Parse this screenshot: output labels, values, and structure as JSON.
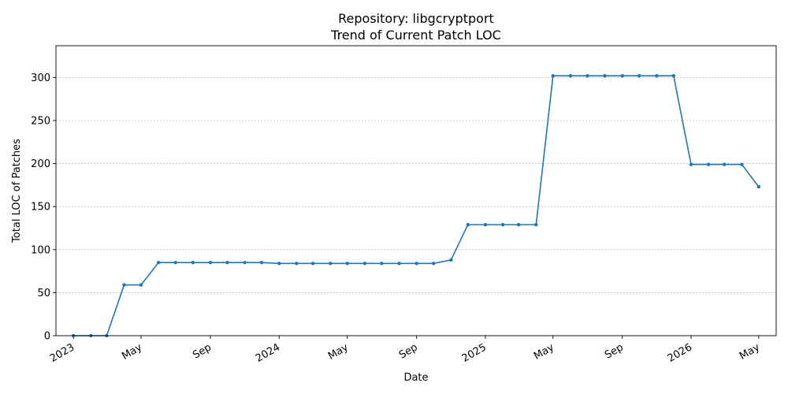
{
  "chart_data": {
    "type": "line",
    "title": "Repository: libgcryptport",
    "subtitle": "Trend of Current Patch LOC",
    "xlabel": "Date",
    "ylabel": "Total LOC of Patches",
    "ylim": [
      0,
      337
    ],
    "xlim": [
      "2022-12-01",
      "2026-06-01"
    ],
    "grid": "y-dashed",
    "color": "#1f77b4",
    "x_ticks": [
      {
        "date": "2023-01-01",
        "label": "2023"
      },
      {
        "date": "2023-05-01",
        "label": "May"
      },
      {
        "date": "2023-09-01",
        "label": "Sep"
      },
      {
        "date": "2024-01-01",
        "label": "2024"
      },
      {
        "date": "2024-05-01",
        "label": "May"
      },
      {
        "date": "2024-09-01",
        "label": "Sep"
      },
      {
        "date": "2025-01-01",
        "label": "2025"
      },
      {
        "date": "2025-05-01",
        "label": "May"
      },
      {
        "date": "2025-09-01",
        "label": "Sep"
      },
      {
        "date": "2026-01-01",
        "label": "2026"
      },
      {
        "date": "2026-05-01",
        "label": "May"
      }
    ],
    "y_ticks": [
      0,
      50,
      100,
      150,
      200,
      250,
      300
    ],
    "series": [
      {
        "x": [
          "2023-01-01",
          "2023-02-01",
          "2023-03-01",
          "2023-04-01",
          "2023-05-01",
          "2023-06-01",
          "2023-07-01",
          "2023-08-01",
          "2023-09-01",
          "2023-10-01",
          "2023-11-01",
          "2023-12-01",
          "2024-01-01",
          "2024-02-01",
          "2024-03-01",
          "2024-04-01",
          "2024-05-01",
          "2024-06-01",
          "2024-07-01",
          "2024-08-01",
          "2024-09-01",
          "2024-10-01",
          "2024-11-01",
          "2024-12-01",
          "2025-01-01",
          "2025-02-01",
          "2025-03-01",
          "2025-04-01",
          "2025-05-01",
          "2025-06-01",
          "2025-07-01",
          "2025-08-01",
          "2025-09-01",
          "2025-10-01",
          "2025-11-01",
          "2025-12-01",
          "2026-01-01",
          "2026-02-01",
          "2026-03-01",
          "2026-04-01",
          "2026-05-01"
        ],
        "y": [
          0,
          0,
          0,
          59,
          59,
          85,
          85,
          85,
          85,
          85,
          85,
          85,
          84,
          84,
          84,
          84,
          84,
          84,
          84,
          84,
          84,
          84,
          88,
          129,
          129,
          129,
          129,
          129,
          302,
          302,
          302,
          302,
          302,
          302,
          302,
          302,
          199,
          199,
          199,
          199,
          173
        ]
      }
    ]
  }
}
